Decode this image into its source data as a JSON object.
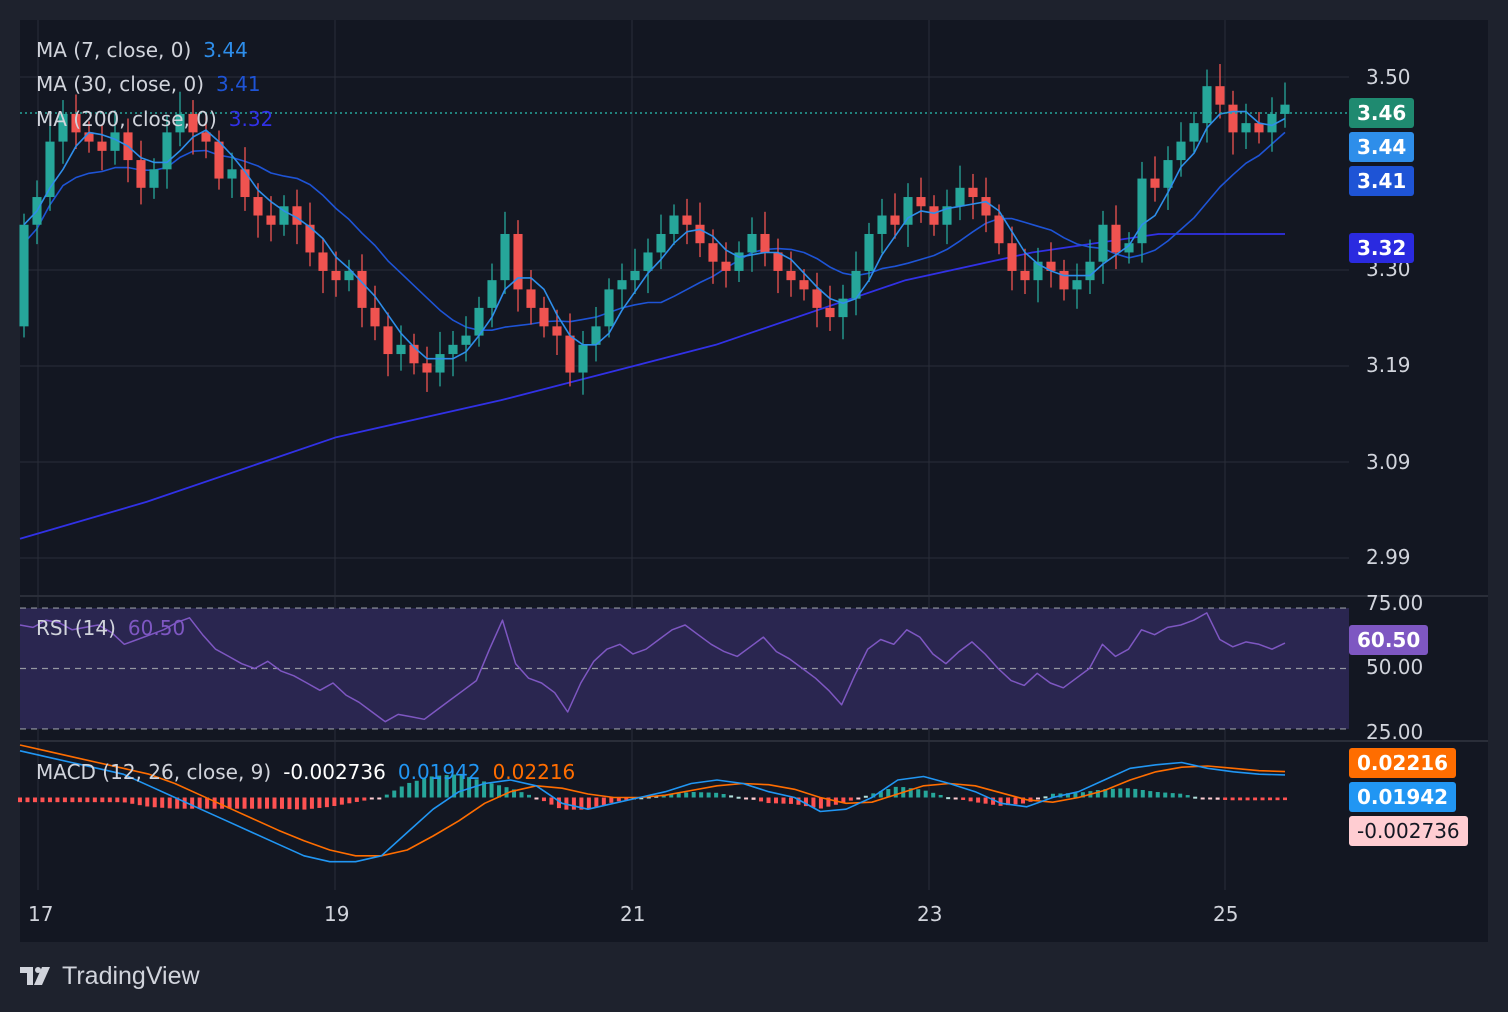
{
  "colors": {
    "background": "#131722",
    "frame": "#1e222d",
    "grid": "#2a2e39",
    "up": "#26a69a",
    "down": "#ef5350",
    "ma7": "#2e8eea",
    "ma30": "#1e54d6",
    "ma200": "#3131e6",
    "rsi": "#7e57c2",
    "rsi_band": "#2a2650",
    "macd": "#2196f3",
    "signal": "#ff6d00",
    "hist_up_strong": "#26a69a",
    "hist_up_weak": "#b2dfdb",
    "hist_down_strong": "#ff5252",
    "hist_down_weak": "#ffcdd2"
  },
  "brand": {
    "name": "TradingView",
    "icon": "tradingview-logo-icon"
  },
  "legend": {
    "ma7": {
      "label": "MA (7, close, 0)",
      "value": "3.44"
    },
    "ma30": {
      "label": "MA (30, close, 0)",
      "value": "3.41"
    },
    "ma200": {
      "label": "MA (200, close, 0)",
      "value": "3.32"
    },
    "rsi": {
      "label": "RSI (14)",
      "value": "60.50"
    },
    "macd": {
      "label": "MACD (12, 26, close, 9)",
      "hist": "-0.002736",
      "macd": "0.01942",
      "signal": "0.02216"
    }
  },
  "badges": {
    "price": "3.46",
    "ma7": "3.44",
    "ma30": "3.41",
    "ma200": "3.32",
    "rsi": "60.50",
    "signal": "0.02216",
    "macd": "0.01942",
    "hist": "-0.002736"
  },
  "axes": {
    "price_ticks": [
      "3.50",
      "3.30",
      "3.19",
      "3.09",
      "2.99"
    ],
    "rsi_ticks": [
      "75.00",
      "50.00",
      "25.00"
    ],
    "date_ticks": [
      "17",
      "19",
      "21",
      "23",
      "25"
    ]
  },
  "chart_data": {
    "type": "candlestick",
    "price_range": [
      2.94,
      3.53
    ],
    "last_price": 3.46,
    "candle_series": [
      3.33,
      3.36,
      3.42,
      3.45,
      3.43,
      3.42,
      3.41,
      3.43,
      3.4,
      3.37,
      3.39,
      3.43,
      3.45,
      3.43,
      3.42,
      3.38,
      3.39,
      3.36,
      3.34,
      3.33,
      3.35,
      3.33,
      3.3,
      3.28,
      3.27,
      3.28,
      3.24,
      3.22,
      3.19,
      3.2,
      3.18,
      3.17,
      3.19,
      3.2,
      3.21,
      3.24,
      3.27,
      3.32,
      3.26,
      3.24,
      3.22,
      3.21,
      3.17,
      3.2,
      3.22,
      3.26,
      3.27,
      3.28,
      3.3,
      3.32,
      3.34,
      3.33,
      3.31,
      3.29,
      3.28,
      3.3,
      3.32,
      3.3,
      3.28,
      3.27,
      3.26,
      3.24,
      3.23,
      3.25,
      3.28,
      3.32,
      3.34,
      3.33,
      3.36,
      3.35,
      3.33,
      3.35,
      3.37,
      3.36,
      3.34,
      3.31,
      3.28,
      3.27,
      3.29,
      3.28,
      3.26,
      3.27,
      3.29,
      3.33,
      3.3,
      3.31,
      3.38,
      3.37,
      3.4,
      3.42,
      3.44,
      3.48,
      3.46,
      3.43,
      3.44,
      3.43,
      3.45,
      3.46
    ],
    "ma7_start": 3.22,
    "ma200": {
      "x": [
        0,
        0.1,
        0.25,
        0.38,
        0.55,
        0.7,
        0.8,
        0.9,
        1
      ],
      "y": [
        2.99,
        3.03,
        3.1,
        3.14,
        3.2,
        3.27,
        3.3,
        3.32,
        3.32
      ]
    },
    "rsi": {
      "levels": [
        75,
        50,
        25
      ],
      "range": [
        20,
        80
      ],
      "values": [
        68,
        67,
        70,
        69,
        66,
        67,
        68,
        65,
        60,
        62,
        64,
        66,
        69,
        71,
        64,
        58,
        55,
        52,
        50,
        53,
        49,
        47,
        44,
        41,
        44,
        39,
        36,
        32,
        28,
        31,
        30,
        29,
        33,
        37,
        41,
        45,
        58,
        70,
        52,
        46,
        44,
        40,
        32,
        44,
        53,
        58,
        60,
        56,
        58,
        62,
        66,
        68,
        64,
        60,
        57,
        55,
        59,
        63,
        57,
        54,
        50,
        46,
        41,
        35,
        47,
        58,
        62,
        60,
        66,
        63,
        56,
        52,
        57,
        61,
        56,
        50,
        45,
        43,
        48,
        44,
        42,
        46,
        50,
        60,
        55,
        58,
        66,
        64,
        67,
        68,
        70,
        73,
        62,
        59,
        61,
        60,
        58,
        60.5
      ]
    },
    "macd": {
      "zero": 0,
      "range": [
        -0.075,
        0.045
      ],
      "macd_values": [
        0.04,
        0.035,
        0.03,
        0.025,
        0.02,
        0.01,
        0.0,
        -0.01,
        -0.02,
        -0.03,
        -0.04,
        -0.05,
        -0.055,
        -0.055,
        -0.05,
        -0.03,
        -0.01,
        0.005,
        0.012,
        0.015,
        0.01,
        -0.005,
        -0.01,
        -0.005,
        0.0,
        0.005,
        0.012,
        0.015,
        0.012,
        0.005,
        0.0,
        -0.012,
        -0.01,
        0.0,
        0.015,
        0.018,
        0.012,
        0.005,
        -0.005,
        -0.008,
        0.0,
        0.005,
        0.015,
        0.025,
        0.028,
        0.03,
        0.025,
        0.022,
        0.02,
        0.0194
      ],
      "signal_values": [
        0.045,
        0.04,
        0.035,
        0.03,
        0.025,
        0.02,
        0.012,
        0.002,
        -0.008,
        -0.018,
        -0.028,
        -0.037,
        -0.045,
        -0.05,
        -0.05,
        -0.045,
        -0.033,
        -0.02,
        -0.005,
        0.005,
        0.01,
        0.008,
        0.003,
        0.0,
        0.0,
        0.002,
        0.006,
        0.01,
        0.012,
        0.011,
        0.007,
        0.0,
        -0.005,
        -0.004,
        0.003,
        0.01,
        0.012,
        0.01,
        0.004,
        -0.002,
        -0.004,
        0.0,
        0.006,
        0.015,
        0.022,
        0.026,
        0.027,
        0.025,
        0.023,
        0.0222
      ]
    }
  }
}
